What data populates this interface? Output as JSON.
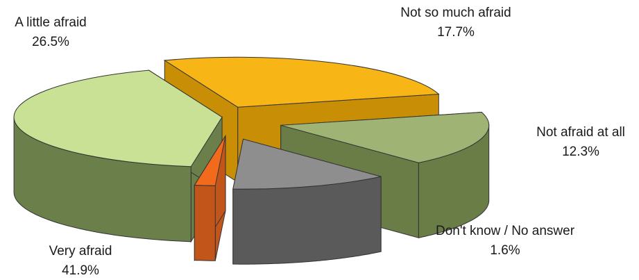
{
  "chart_data": {
    "type": "pie",
    "style": "3d-exploded",
    "slices": [
      {
        "label": "A little afraid",
        "value": 26.5,
        "value_label": "26.5%",
        "color": "#f8b516",
        "side_color": "#c88f06"
      },
      {
        "label": "Not so much afraid",
        "value": 17.7,
        "value_label": "17.7%",
        "color": "#9fb474",
        "side_color": "#6a7d46"
      },
      {
        "label": "Not afraid at all",
        "value": 12.3,
        "value_label": "12.3%",
        "color": "#8e8e8e",
        "side_color": "#5a5a5a"
      },
      {
        "label": "Don't know / No answer",
        "value": 1.6,
        "value_label": "1.6%",
        "color": "#f26a1b",
        "side_color": "#c2551a"
      },
      {
        "label": "Very afraid",
        "value": 41.9,
        "value_label": "41.9%",
        "color": "#c8e194",
        "side_color": "#6b7f4b"
      }
    ]
  }
}
